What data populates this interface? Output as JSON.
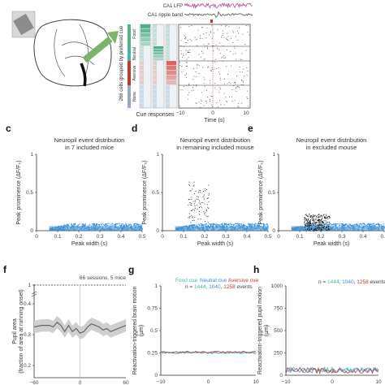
{
  "top": {
    "trace_labels": [
      "CA1 LFP",
      "CA1 ripple band"
    ],
    "side_label": "266 cells grouped by preferred cue",
    "groups": [
      "Food",
      "Neutral",
      "Aversive",
      "None"
    ],
    "cue_responses_label": "Cue responses",
    "time_label": "Time (s)",
    "time_ticks": [
      "−10",
      "0",
      "10"
    ]
  },
  "panels": {
    "c": {
      "letter": "c",
      "title1": "Neuropil event distribution",
      "title2": "in 7 included mice"
    },
    "d": {
      "letter": "d",
      "title1": "Neuropil event distribution",
      "title2": "in remaining included mouse"
    },
    "e": {
      "letter": "e",
      "title1": "Neuropil event distribution",
      "title2": "in excluded mouse"
    },
    "f": {
      "letter": "f",
      "note": "66 sessions, 5 mice",
      "ylabel": "Pupil area (fraction of area at running onset)"
    },
    "g": {
      "letter": "g",
      "ylabel": "Reactivation-triggered brain motion (µm)",
      "legend": {
        "food": "Food cue",
        "neutral": "Neutral cue",
        "aversive": "Aversive cue",
        "n_prefix": "n = ",
        "food_n": "1444",
        "neutral_n": "1040",
        "aversive_n": "1258",
        "suffix": " events"
      }
    },
    "h": {
      "letter": "h",
      "ylabel": "Reactivation-triggered pupil motion (µm)",
      "legend": {
        "n_prefix": "n = ",
        "food_n": "1444",
        "neutral_n": "1040",
        "aversive_n": "1258",
        "suffix": " events"
      }
    }
  },
  "colors": {
    "blue": "#3a8fd9",
    "teal": "#3fb8a8",
    "red": "#c0392b",
    "gray": "#666666",
    "black": "#111111"
  },
  "chart_data": [
    {
      "type": "scatter",
      "id": "c",
      "title": "Neuropil event distribution in 7 included mice",
      "xlabel": "Peak width (s)",
      "ylabel": "Peak prominence (ΔF/F₀)",
      "xlim": [
        0,
        0.5
      ],
      "ylim": [
        0,
        1
      ],
      "x_ticks": [
        "0",
        "0.1",
        "0.2",
        "0.3",
        "0.4",
        "0.5"
      ],
      "y_ticks": [
        "0",
        "0.5",
        "1"
      ]
    },
    {
      "type": "scatter",
      "id": "d",
      "title": "Neuropil event distribution in remaining included mouse",
      "xlabel": "Peak width (s)",
      "ylabel": "Peak prominence (ΔF/F₀)",
      "xlim": [
        0,
        0.5
      ],
      "ylim": [
        0,
        1
      ],
      "x_ticks": [
        "0",
        "0.1",
        "0.2",
        "0.3",
        "0.4",
        "0.5"
      ],
      "y_ticks": [
        "0",
        "0.5",
        "1"
      ]
    },
    {
      "type": "scatter",
      "id": "e",
      "title": "Neuropil event distribution in excluded mouse",
      "xlabel": "Peak width (s)",
      "ylabel": "Peak prominence (ΔF/F₀)",
      "xlim": [
        0,
        0.5
      ],
      "ylim": [
        0,
        1
      ],
      "x_ticks": [
        "0",
        "0.1",
        "0.2",
        "0.3",
        "0.4",
        "0.5"
      ],
      "y_ticks": [
        "0",
        "0.5",
        "1"
      ]
    },
    {
      "type": "line",
      "id": "f",
      "ylabel": "Pupil area (fraction of area at running onset)",
      "xlim": [
        -60,
        60
      ],
      "ylim": [
        0.2,
        1.0
      ],
      "y_ticks": [
        "0.2",
        "0.3",
        "0.4",
        "1"
      ],
      "x_ticks": [
        "−60",
        "0",
        "60"
      ],
      "reference_line": 1.0,
      "x": [
        -60,
        -50,
        -40,
        -35,
        -30,
        -25,
        -20,
        -15,
        -10,
        -5,
        0,
        5,
        10,
        15,
        20,
        25,
        30,
        35,
        40,
        50,
        60
      ],
      "y": [
        0.325,
        0.33,
        0.33,
        0.325,
        0.34,
        0.33,
        0.31,
        0.33,
        0.31,
        0.32,
        0.305,
        0.31,
        0.325,
        0.335,
        0.33,
        0.325,
        0.315,
        0.32,
        0.31,
        0.32,
        0.33
      ]
    },
    {
      "type": "line",
      "id": "g",
      "ylabel": "Reactivation-triggered brain motion (µm)",
      "xlim": [
        -10,
        10
      ],
      "ylim": [
        0,
        1
      ],
      "y_ticks": [
        "0",
        "0.25",
        "0.5",
        "0.75",
        "1"
      ],
      "x_ticks": [
        "−10",
        "0",
        "10"
      ],
      "series": [
        {
          "name": "Food cue",
          "value": 0.25
        },
        {
          "name": "Neutral cue",
          "value": 0.255
        },
        {
          "name": "Aversive cue",
          "value": 0.26
        }
      ]
    },
    {
      "type": "line",
      "id": "h",
      "ylabel": "Reactivation-triggered pupil motion (µm)",
      "xlim": [
        -10,
        10
      ],
      "ylim": [
        0,
        1000
      ],
      "y_ticks": [
        "0",
        "250",
        "500",
        "750",
        "1000"
      ],
      "x_ticks": [
        "−10",
        "0",
        "10"
      ],
      "series": [
        {
          "name": "Food cue",
          "value": 50
        },
        {
          "name": "Neutral cue",
          "value": 45
        },
        {
          "name": "Aversive cue",
          "value": 40
        }
      ]
    }
  ]
}
